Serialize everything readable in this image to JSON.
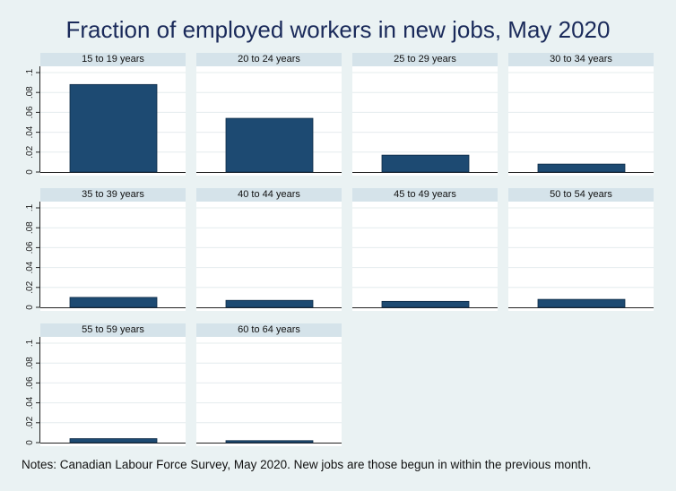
{
  "title": "Fraction of employed workers in new jobs, May 2020",
  "notes": "Notes: Canadian Labour Force Survey, May 2020. New jobs are those begun in within the previous month.",
  "chart_data": {
    "type": "bar",
    "title": "Fraction of employed workers in new jobs, May 2020",
    "ylim": [
      0,
      0.1
    ],
    "yticks": [
      0,
      0.02,
      0.04,
      0.06,
      0.08,
      0.1
    ],
    "ytick_labels": [
      "0",
      ".02",
      ".04",
      ".06",
      ".08",
      ".1"
    ],
    "grid": true,
    "bar_color": "#1d4a72",
    "panels": [
      {
        "label": "15 to 19 years",
        "value": 0.088
      },
      {
        "label": "20 to 24 years",
        "value": 0.054
      },
      {
        "label": "25 to 29 years",
        "value": 0.017
      },
      {
        "label": "30 to 34 years",
        "value": 0.008
      },
      {
        "label": "35 to 39 years",
        "value": 0.01
      },
      {
        "label": "40 to 44 years",
        "value": 0.007
      },
      {
        "label": "45 to 49 years",
        "value": 0.006
      },
      {
        "label": "50 to 54 years",
        "value": 0.008
      },
      {
        "label": "55 to 59 years",
        "value": 0.004
      },
      {
        "label": "60 to 64 years",
        "value": 0.002
      }
    ]
  }
}
